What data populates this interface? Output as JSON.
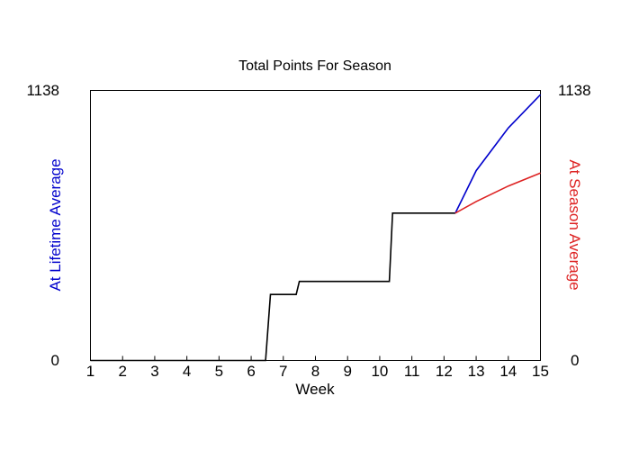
{
  "chart_data": {
    "type": "line",
    "title": "Total Points For Season",
    "xlabel": "Week",
    "left_label": "At Lifetime Average",
    "right_label": "At Season Average",
    "xlim": [
      1,
      15
    ],
    "ylim": [
      0,
      1138
    ],
    "x_ticks": [
      "1",
      "2",
      "3",
      "4",
      "5",
      "6",
      "7",
      "8",
      "9",
      "10",
      "11",
      "12",
      "13",
      "14",
      "15"
    ],
    "y_tick_min_label": "0",
    "y_tick_max_label": "1138",
    "grid": false,
    "colors": {
      "actual": "#000000",
      "lifetime": "#0000cc",
      "season": "#dd2222"
    },
    "series": [
      {
        "key": "actual",
        "x": [
          1,
          6.45,
          6.6,
          7.4,
          7.5,
          10.3,
          10.4,
          12.35
        ],
        "values": [
          0,
          0,
          278,
          278,
          333,
          333,
          621,
          621
        ]
      },
      {
        "key": "lifetime",
        "x": [
          12.35,
          13,
          14,
          15
        ],
        "values": [
          621,
          800,
          980,
          1120
        ]
      },
      {
        "key": "season",
        "x": [
          12.35,
          13,
          14,
          15
        ],
        "values": [
          621,
          670,
          735,
          790
        ]
      }
    ]
  }
}
